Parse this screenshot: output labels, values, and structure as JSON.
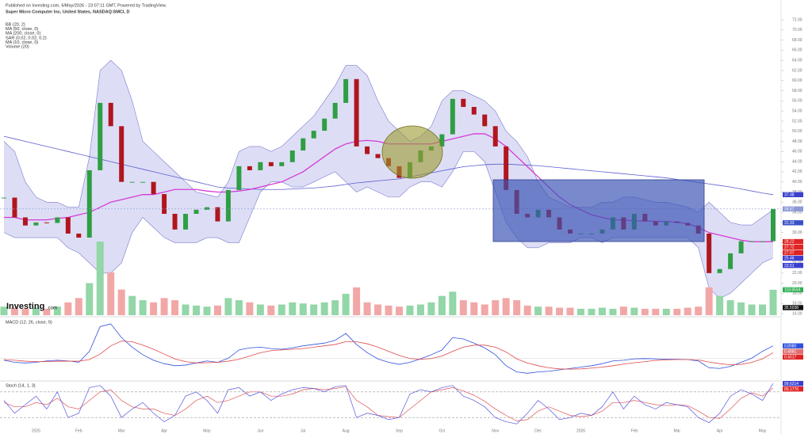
{
  "header": "Published on Investing.com, 6/May/2026 - 23:07:11 GMT, Powered by TradingView.",
  "chart_data": [
    {
      "type": "line",
      "title": "Super Micro Computer Inc, United States, NASDAQ:SMCI, D",
      "indicators": [
        "BB (20, 2)",
        "MA (50, close, 0)",
        "MA (200, close, 0)",
        "SAR (0.02, 0.02, 0.2)",
        "MA (10, close, 0)",
        "Volume (20)"
      ],
      "watermark": [
        "Investing",
        ".com"
      ],
      "ylim": [
        14,
        72
      ],
      "yticks": [
        {
          "value": 14,
          "label": "14.00"
        },
        {
          "value": 16,
          "label": "16.00"
        },
        {
          "value": 18,
          "label": "18.00"
        },
        {
          "value": 20,
          "label": "20.00"
        },
        {
          "value": 22,
          "label": "22.00"
        },
        {
          "value": 24,
          "label": "24.00"
        },
        {
          "value": 26,
          "label": "26.00"
        },
        {
          "value": 28,
          "label": "28.00"
        },
        {
          "value": 30,
          "label": "30.00"
        },
        {
          "value": 32,
          "label": "32.00"
        },
        {
          "value": 34,
          "label": "34.00"
        },
        {
          "value": 36,
          "label": "36.00"
        },
        {
          "value": 38,
          "label": "38.00"
        },
        {
          "value": 40,
          "label": "40.00"
        },
        {
          "value": 42,
          "label": "42.00"
        },
        {
          "value": 44,
          "label": "44.00"
        },
        {
          "value": 46,
          "label": "46.00"
        },
        {
          "value": 48,
          "label": "48.00"
        },
        {
          "value": 50,
          "label": "50.00"
        },
        {
          "value": 52,
          "label": "52.00"
        },
        {
          "value": 54,
          "label": "54.00"
        },
        {
          "value": 56,
          "label": "56.00"
        },
        {
          "value": 58,
          "label": "58.00"
        },
        {
          "value": 60,
          "label": "60.00"
        },
        {
          "value": 62,
          "label": "62.00"
        },
        {
          "value": 64,
          "label": "64.00"
        },
        {
          "value": 66,
          "label": "66.00"
        },
        {
          "value": 68,
          "label": "68.00"
        },
        {
          "value": 70,
          "label": "70.00"
        },
        {
          "value": 72,
          "label": "72.00"
        }
      ],
      "price": {
        "up_color": "#2f9e44",
        "down_color": "#b0161e",
        "values": [
          36.9,
          33,
          31.4,
          32,
          31.9,
          33,
          29.8,
          29,
          42.3,
          55.6,
          51,
          40,
          40,
          40,
          37.6,
          33.7,
          30.6,
          33.7,
          34.5,
          35,
          32.2,
          38.4,
          43.1,
          42.3,
          43.9,
          43.1,
          43.9,
          46.2,
          48.6,
          50.1,
          52.5,
          55.6,
          60.3,
          47,
          45.5,
          44.7,
          43.1,
          40.8,
          43.9,
          46.2,
          47,
          49.4,
          56.4,
          54.8,
          53.3,
          51,
          47,
          38.4,
          33.7,
          33,
          34.5,
          33,
          30.6,
          29.8,
          29.8,
          29.8,
          30.6,
          33,
          30.6,
          33.7,
          32.2,
          31.4,
          32.2,
          31.9,
          31.4,
          29.8,
          22,
          22.8,
          25.9,
          28.3,
          28.3,
          28.3,
          34.67
        ]
      },
      "bb_upper": {
        "color": "#7b7bcf",
        "fill": "#d2d3f1",
        "values": [
          48,
          46,
          40,
          37,
          36,
          36,
          35,
          35,
          45,
          62,
          64,
          62,
          56,
          48,
          46,
          44,
          42,
          40,
          38,
          37.5,
          37,
          40,
          46,
          47,
          47,
          46,
          47,
          49,
          51,
          53,
          56,
          59,
          63,
          63,
          61,
          56,
          52,
          50,
          48,
          49,
          51,
          56,
          58,
          58,
          57,
          56,
          54,
          50,
          48,
          45,
          40,
          37,
          36,
          35,
          35,
          35,
          36,
          36,
          37,
          37,
          36.5,
          36,
          36,
          35.5,
          35,
          34,
          36,
          34,
          32,
          31.5,
          31.5,
          33,
          34.5
        ]
      },
      "bb_lower": {
        "color": "#7b7bcf",
        "values": [
          30,
          29,
          29,
          29,
          29,
          29,
          27,
          26,
          24,
          22,
          22,
          24,
          30,
          33,
          31,
          29,
          28,
          28,
          28,
          29,
          29,
          28,
          28,
          33,
          38,
          40,
          40,
          39,
          39,
          40,
          41,
          42,
          40,
          38,
          39,
          38,
          37,
          37,
          39,
          40,
          40,
          39,
          42,
          46,
          46,
          44,
          38,
          32,
          29,
          27,
          27,
          28,
          28,
          28,
          29,
          29,
          28,
          29,
          29,
          29,
          29,
          29,
          29,
          29,
          29,
          27,
          19,
          17,
          18,
          20,
          22,
          24,
          25
        ]
      },
      "ma50": {
        "color": "#d63ad6",
        "values": [
          33,
          33,
          32.5,
          32.5,
          32.5,
          32.8,
          33,
          33.5,
          34,
          35,
          36,
          36.5,
          37,
          37.5,
          37.5,
          38,
          38.5,
          38.5,
          38.5,
          38.2,
          38,
          38,
          38.2,
          38.5,
          39,
          39.5,
          40,
          41,
          42,
          43.5,
          45,
          46.5,
          47.5,
          48,
          48.2,
          48,
          47.5,
          47.5,
          47.5,
          47.5,
          47.5,
          48,
          48.5,
          49,
          49.5,
          49.5,
          48.5,
          47,
          45,
          43,
          41,
          39,
          37,
          35.5,
          34.5,
          33.5,
          33,
          32.5,
          32.5,
          32.3,
          32.3,
          32.2,
          32.2,
          32,
          31.8,
          31,
          30,
          29.5,
          29,
          28.5,
          28.2,
          28.2,
          28.22
        ]
      },
      "ma200": {
        "color": "#5c5cd2",
        "values": [
          49,
          48.5,
          48,
          47.5,
          47,
          46.5,
          46,
          45.5,
          45,
          44.5,
          44,
          43.5,
          43,
          42.5,
          42,
          41.5,
          41,
          40.5,
          40,
          39.5,
          39,
          38.8,
          38.7,
          38.6,
          38.5,
          38.5,
          38.5,
          38.6,
          38.7,
          38.8,
          39,
          39.2,
          39.5,
          39.8,
          40,
          40.2,
          40.4,
          40.6,
          41,
          41.4,
          41.8,
          42.2,
          42.6,
          43,
          43.2,
          43.4,
          43.5,
          43.5,
          43.4,
          43.3,
          43.2,
          43,
          42.8,
          42.6,
          42.4,
          42.2,
          42,
          41.8,
          41.6,
          41.4,
          41.2,
          41,
          40.8,
          40.5,
          40.2,
          39.9,
          39.6,
          39.3,
          39,
          38.6,
          38.2,
          37.8,
          37.48
        ]
      },
      "volume": {
        "up_color": "#93d6a8",
        "down_color": "#f2a7a7",
        "values": [
          40,
          35,
          30,
          35,
          30,
          40,
          60,
          80,
          150,
          344,
          200,
          120,
          90,
          70,
          60,
          80,
          70,
          50,
          45,
          40,
          45,
          80,
          70,
          60,
          50,
          45,
          50,
          60,
          55,
          50,
          60,
          70,
          100,
          130,
          60,
          50,
          45,
          40,
          45,
          50,
          60,
          90,
          110,
          70,
          60,
          50,
          70,
          80,
          70,
          45,
          40,
          40,
          35,
          35,
          30,
          30,
          35,
          30,
          40,
          35,
          30,
          30,
          30,
          30,
          35,
          40,
          130,
          90,
          70,
          60,
          50,
          50,
          118.8594
        ]
      },
      "volume_ylim": [
        0,
        370
      ],
      "axis_labels": [
        {
          "value": 37.48,
          "color": "#3b40cf"
        },
        {
          "value": 34.67,
          "color": "#8c9ad6"
        },
        {
          "value": 31.93,
          "color": "#3b52c8"
        },
        {
          "value": 28.22,
          "color": "#e02424"
        },
        {
          "value": 27.72,
          "color": "#e02424"
        },
        {
          "value": 27.07,
          "color": "#e02424"
        },
        {
          "value": 25.46,
          "color": "#3b40cf"
        },
        {
          "value": 23.51,
          "color": "#3b40cf"
        }
      ],
      "volume_labels": [
        {
          "value": 118.8594,
          "color": "#2fae55"
        },
        {
          "value": 35.5038,
          "color": "#111111"
        }
      ]
    },
    {
      "type": "line",
      "title": "MACD (12, 26, close, 9)",
      "ylim": [
        -1.6,
        2.9
      ],
      "macd": {
        "color": "#3050e0",
        "values": [
          -0.15,
          -0.3,
          -0.35,
          -0.3,
          -0.2,
          -0.15,
          -0.2,
          -0.3,
          0.5,
          2.3,
          2.5,
          1.5,
          0.8,
          0.25,
          -0.15,
          -0.4,
          -0.55,
          -0.5,
          -0.35,
          -0.2,
          -0.3,
          0,
          0.6,
          0.75,
          0.8,
          0.7,
          0.65,
          0.75,
          0.9,
          1,
          1.1,
          1.3,
          1.8,
          1,
          0.4,
          -0.05,
          -0.3,
          -0.45,
          -0.3,
          -0.05,
          0.25,
          0.6,
          1.5,
          1.4,
          1.1,
          0.75,
          0.25,
          -0.55,
          -1,
          -1.1,
          -1,
          -0.95,
          -0.85,
          -0.75,
          -0.65,
          -0.55,
          -0.4,
          -0.2,
          -0.15,
          -0.05,
          -0.03,
          -0.05,
          -0.08,
          -0.08,
          -0.1,
          -0.2,
          -0.7,
          -0.75,
          -0.6,
          -0.3,
          0,
          0.5,
          0.898
        ]
      },
      "signal": {
        "color": "#e04848",
        "values": [
          -0.1,
          -0.15,
          -0.22,
          -0.25,
          -0.25,
          -0.22,
          -0.22,
          -0.22,
          -0.1,
          0.3,
          0.9,
          1.25,
          1.2,
          0.95,
          0.65,
          0.3,
          -0.05,
          -0.25,
          -0.35,
          -0.33,
          -0.3,
          -0.22,
          -0.08,
          0.15,
          0.4,
          0.55,
          0.6,
          0.65,
          0.7,
          0.8,
          0.9,
          1,
          1.2,
          1.2,
          1.05,
          0.8,
          0.5,
          0.2,
          -0.03,
          -0.08,
          -0.03,
          0.15,
          0.5,
          0.8,
          0.95,
          0.95,
          0.8,
          0.45,
          -0.05,
          -0.35,
          -0.55,
          -0.7,
          -0.78,
          -0.8,
          -0.78,
          -0.72,
          -0.65,
          -0.55,
          -0.43,
          -0.33,
          -0.25,
          -0.16,
          -0.12,
          -0.1,
          -0.1,
          -0.13,
          -0.28,
          -0.4,
          -0.48,
          -0.45,
          -0.3,
          -0.05,
          0.4017
        ]
      },
      "axis_labels": [
        {
          "value": 0.898,
          "label": "0.8980",
          "color": "#3050e0"
        },
        {
          "value": 0.4881,
          "color": "#e07070"
        },
        {
          "value": 0.4017,
          "color": "#e02424"
        }
      ]
    },
    {
      "type": "line",
      "title": "Stoch (14, 1, 3)",
      "ylim": [
        0,
        100
      ],
      "levels": [
        80,
        20
      ],
      "k": {
        "color": "#5555e0",
        "values": [
          60,
          30,
          50,
          70,
          40,
          80,
          20,
          30,
          90,
          95,
          70,
          20,
          40,
          55,
          30,
          10,
          25,
          70,
          80,
          60,
          30,
          85,
          90,
          70,
          80,
          60,
          75,
          85,
          90,
          88,
          80,
          92,
          95,
          20,
          30,
          25,
          15,
          20,
          75,
          85,
          80,
          90,
          95,
          70,
          60,
          45,
          20,
          10,
          5,
          30,
          60,
          40,
          15,
          20,
          30,
          25,
          45,
          80,
          40,
          70,
          50,
          40,
          55,
          50,
          45,
          20,
          8,
          30,
          70,
          85,
          75,
          60,
          99.6214
        ]
      },
      "d": {
        "color": "#e05555",
        "values": [
          55,
          45,
          45,
          55,
          50,
          65,
          45,
          40,
          60,
          80,
          85,
          60,
          45,
          40,
          40,
          30,
          25,
          40,
          60,
          70,
          55,
          60,
          70,
          80,
          80,
          70,
          70,
          75,
          85,
          88,
          85,
          88,
          92,
          60,
          45,
          25,
          22,
          20,
          40,
          60,
          80,
          85,
          90,
          82,
          72,
          58,
          40,
          25,
          12,
          15,
          35,
          45,
          35,
          25,
          22,
          25,
          35,
          55,
          55,
          60,
          55,
          50,
          48,
          50,
          48,
          35,
          20,
          18,
          40,
          65,
          78,
          70,
          89.1776
        ]
      },
      "axis_labels": [
        {
          "value": 99.6214,
          "color": "#3b40cf"
        },
        {
          "value": 89.1776,
          "color": "#e02424"
        }
      ],
      "categories": [
        null,
        null,
        null,
        "2025",
        null,
        null,
        null,
        "Feb",
        null,
        null,
        null,
        "Mar",
        null,
        null,
        null,
        "Apr",
        null,
        null,
        null,
        "May",
        null,
        null,
        null,
        null,
        "Jun",
        null,
        null,
        null,
        "Jul",
        null,
        null,
        null,
        "Aug",
        null,
        null,
        null,
        null,
        "Sep",
        null,
        null,
        null,
        "Oct",
        null,
        null,
        null,
        null,
        "Nov",
        null,
        null,
        null,
        "Dec",
        null,
        null,
        null,
        "2026",
        null,
        null,
        null,
        null,
        "Feb",
        null,
        null,
        null,
        "Mar",
        null,
        null,
        null,
        "Apr",
        null,
        null,
        null,
        "May",
        null
      ]
    }
  ]
}
